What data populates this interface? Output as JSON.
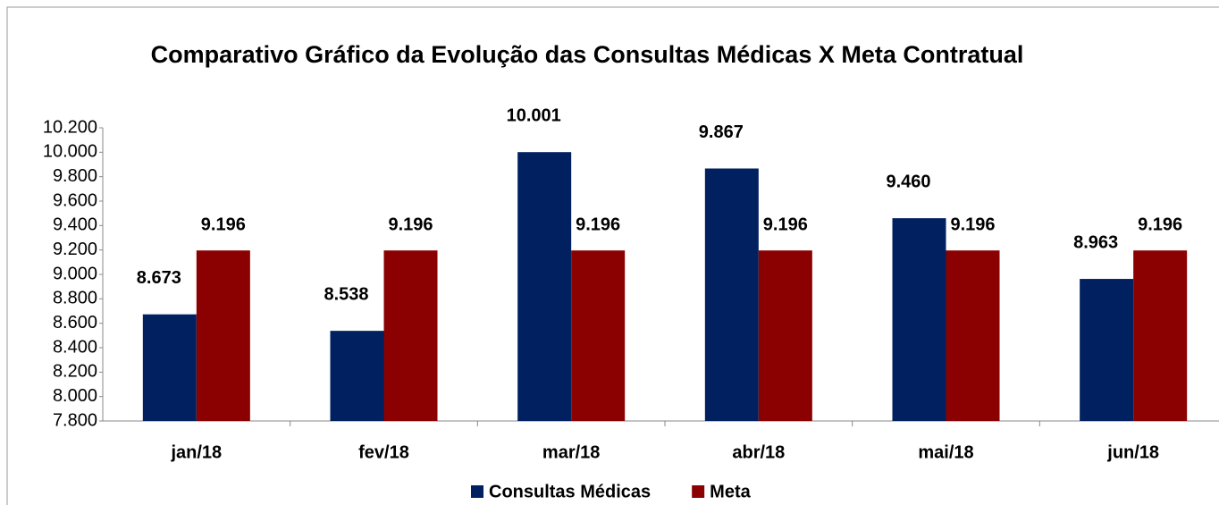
{
  "chart_data": {
    "type": "bar",
    "title": "Comparativo Gráfico da Evolução das Consultas Médicas X Meta Contratual",
    "categories": [
      "jan/18",
      "fev/18",
      "mar/18",
      "abr/18",
      "mai/18",
      "jun/18"
    ],
    "series": [
      {
        "name": "Consultas Médicas",
        "color": "#002060",
        "values": [
          8673,
          8538,
          10001,
          9867,
          9460,
          8963
        ],
        "value_labels": [
          "8.673",
          "8.538",
          "10.001",
          "9.867",
          "9.460",
          "8.963"
        ]
      },
      {
        "name": "Meta",
        "color": "#8b0000",
        "values": [
          9196,
          9196,
          9196,
          9196,
          9196,
          9196
        ],
        "value_labels": [
          "9.196",
          "9.196",
          "9.196",
          "9.196",
          "9.196",
          "9.196"
        ]
      }
    ],
    "ylim": [
      7800,
      10200
    ],
    "yticks": [
      {
        "value": 7800,
        "label": "7.800"
      },
      {
        "value": 8000,
        "label": "8.000"
      },
      {
        "value": 8200,
        "label": "8.200"
      },
      {
        "value": 8400,
        "label": "8.400"
      },
      {
        "value": 8600,
        "label": "8.600"
      },
      {
        "value": 8800,
        "label": "8.800"
      },
      {
        "value": 9000,
        "label": "9.000"
      },
      {
        "value": 9200,
        "label": "9.200"
      },
      {
        "value": 9400,
        "label": "9.400"
      },
      {
        "value": 9600,
        "label": "9.600"
      },
      {
        "value": 9800,
        "label": "9.800"
      },
      {
        "value": 10000,
        "label": "10.000"
      },
      {
        "value": 10200,
        "label": "10.200"
      }
    ],
    "grid": false,
    "legend": "bottom"
  }
}
